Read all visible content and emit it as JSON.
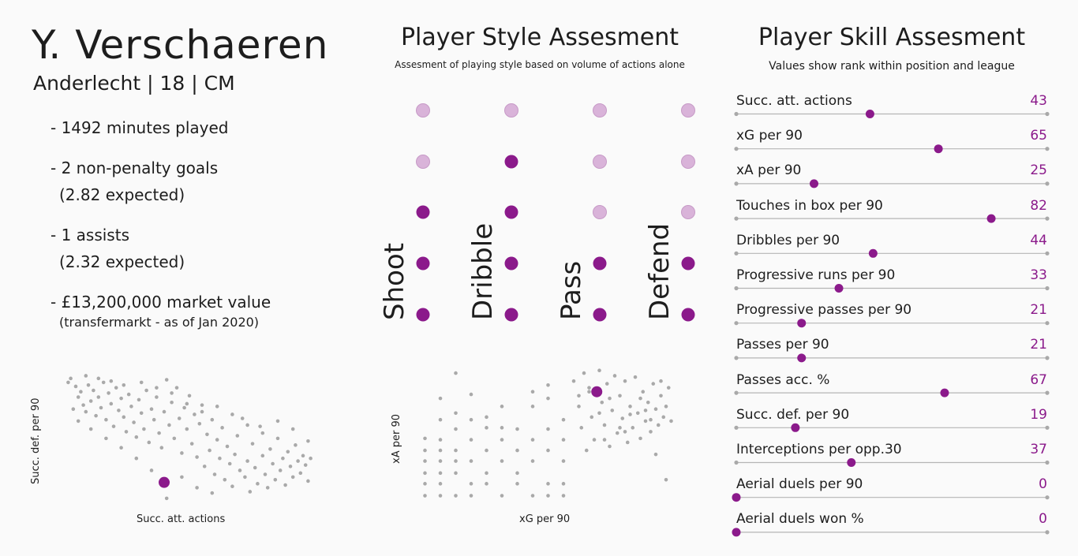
{
  "player": {
    "name": "Y. Verschaeren",
    "subtitle": "Anderlecht | 18 | CM"
  },
  "stats": [
    {
      "text": "- 1492 minutes played"
    },
    {
      "text": "- 2 non-penalty goals",
      "sub": "(2.82 expected)"
    },
    {
      "text": "- 1 assists",
      "sub": "(2.32 expected)"
    },
    {
      "text": "- £13,200,000 market value",
      "sub": "(transfermarkt - as of Jan 2020)"
    }
  ],
  "style": {
    "title": "Player Style Assesment",
    "subtitle": "Assesment of playing style based on volume of actions alone"
  },
  "skill": {
    "title": "Player Skill Assesment",
    "subtitle": "Values show rank within position and league"
  },
  "colors": {
    "accent": "#8b1a8b",
    "accent_light": "#d9b3d9",
    "dots": "#a9a9a9",
    "track": "#b5b5b5"
  },
  "chart_data": [
    {
      "type": "scatter",
      "id": "def-vs-att",
      "xlabel": "Succ. att. actions",
      "ylabel": "Succ. def. per 90",
      "highlight": {
        "x": 0.4,
        "y": 0.15
      },
      "points": [
        [
          0.02,
          0.9
        ],
        [
          0.03,
          0.93
        ],
        [
          0.05,
          0.87
        ],
        [
          0.06,
          0.79
        ],
        [
          0.07,
          0.83
        ],
        [
          0.08,
          0.73
        ],
        [
          0.09,
          0.68
        ],
        [
          0.1,
          0.88
        ],
        [
          0.11,
          0.76
        ],
        [
          0.12,
          0.84
        ],
        [
          0.13,
          0.65
        ],
        [
          0.14,
          0.79
        ],
        [
          0.15,
          0.71
        ],
        [
          0.16,
          0.9
        ],
        [
          0.17,
          0.62
        ],
        [
          0.18,
          0.82
        ],
        [
          0.19,
          0.74
        ],
        [
          0.2,
          0.57
        ],
        [
          0.21,
          0.86
        ],
        [
          0.22,
          0.69
        ],
        [
          0.23,
          0.78
        ],
        [
          0.24,
          0.64
        ],
        [
          0.25,
          0.53
        ],
        [
          0.26,
          0.81
        ],
        [
          0.27,
          0.72
        ],
        [
          0.28,
          0.6
        ],
        [
          0.29,
          0.49
        ],
        [
          0.3,
          0.77
        ],
        [
          0.31,
          0.67
        ],
        [
          0.32,
          0.55
        ],
        [
          0.33,
          0.84
        ],
        [
          0.34,
          0.45
        ],
        [
          0.35,
          0.7
        ],
        [
          0.36,
          0.62
        ],
        [
          0.37,
          0.79
        ],
        [
          0.38,
          0.52
        ],
        [
          0.39,
          0.41
        ],
        [
          0.4,
          0.68
        ],
        [
          0.41,
          0.92
        ],
        [
          0.42,
          0.58
        ],
        [
          0.43,
          0.75
        ],
        [
          0.44,
          0.48
        ],
        [
          0.45,
          0.86
        ],
        [
          0.46,
          0.63
        ],
        [
          0.47,
          0.37
        ],
        [
          0.48,
          0.71
        ],
        [
          0.49,
          0.55
        ],
        [
          0.5,
          0.8
        ],
        [
          0.51,
          0.44
        ],
        [
          0.52,
          0.66
        ],
        [
          0.53,
          0.34
        ],
        [
          0.54,
          0.59
        ],
        [
          0.55,
          0.73
        ],
        [
          0.56,
          0.27
        ],
        [
          0.57,
          0.51
        ],
        [
          0.58,
          0.39
        ],
        [
          0.59,
          0.62
        ],
        [
          0.6,
          0.21
        ],
        [
          0.61,
          0.47
        ],
        [
          0.62,
          0.33
        ],
        [
          0.63,
          0.56
        ],
        [
          0.64,
          0.17
        ],
        [
          0.65,
          0.42
        ],
        [
          0.66,
          0.29
        ],
        [
          0.67,
          0.12
        ],
        [
          0.68,
          0.36
        ],
        [
          0.69,
          0.5
        ],
        [
          0.7,
          0.24
        ],
        [
          0.71,
          0.63
        ],
        [
          0.72,
          0.19
        ],
        [
          0.73,
          0.31
        ],
        [
          0.74,
          0.08
        ],
        [
          0.75,
          0.44
        ],
        [
          0.76,
          0.26
        ],
        [
          0.77,
          0.14
        ],
        [
          0.78,
          0.57
        ],
        [
          0.79,
          0.35
        ],
        [
          0.8,
          0.21
        ],
        [
          0.81,
          0.11
        ],
        [
          0.82,
          0.4
        ],
        [
          0.83,
          0.29
        ],
        [
          0.84,
          0.17
        ],
        [
          0.85,
          0.48
        ],
        [
          0.86,
          0.24
        ],
        [
          0.87,
          0.33
        ],
        [
          0.88,
          0.13
        ],
        [
          0.89,
          0.38
        ],
        [
          0.9,
          0.27
        ],
        [
          0.91,
          0.19
        ],
        [
          0.92,
          0.43
        ],
        [
          0.93,
          0.31
        ],
        [
          0.94,
          0.22
        ],
        [
          0.95,
          0.35
        ],
        [
          0.96,
          0.28
        ],
        [
          0.97,
          0.16
        ],
        [
          0.98,
          0.33
        ],
        [
          0.06,
          0.61
        ],
        [
          0.11,
          0.55
        ],
        [
          0.17,
          0.48
        ],
        [
          0.23,
          0.41
        ],
        [
          0.29,
          0.33
        ],
        [
          0.35,
          0.24
        ],
        [
          0.41,
          0.03
        ],
        [
          0.47,
          0.19
        ],
        [
          0.53,
          0.11
        ],
        [
          0.59,
          0.07
        ],
        [
          0.04,
          0.7
        ],
        [
          0.09,
          0.95
        ],
        [
          0.14,
          0.93
        ],
        [
          0.19,
          0.91
        ],
        [
          0.24,
          0.88
        ],
        [
          0.31,
          0.9
        ],
        [
          0.37,
          0.86
        ],
        [
          0.43,
          0.82
        ],
        [
          0.49,
          0.74
        ],
        [
          0.55,
          0.68
        ],
        [
          0.61,
          0.72
        ],
        [
          0.67,
          0.66
        ],
        [
          0.73,
          0.58
        ],
        [
          0.79,
          0.52
        ],
        [
          0.85,
          0.61
        ],
        [
          0.91,
          0.55
        ],
        [
          0.97,
          0.46
        ]
      ]
    },
    {
      "type": "scatter",
      "id": "xa-vs-xg",
      "xlabel": "xG per 90",
      "ylabel": "xA per 90",
      "highlight": {
        "x": 0.69,
        "y": 0.83
      },
      "points": [
        [
          0.02,
          0.48
        ],
        [
          0.02,
          0.39
        ],
        [
          0.02,
          0.31
        ],
        [
          0.02,
          0.22
        ],
        [
          0.02,
          0.14
        ],
        [
          0.02,
          0.05
        ],
        [
          0.08,
          0.78
        ],
        [
          0.08,
          0.62
        ],
        [
          0.08,
          0.47
        ],
        [
          0.08,
          0.39
        ],
        [
          0.08,
          0.31
        ],
        [
          0.08,
          0.22
        ],
        [
          0.08,
          0.14
        ],
        [
          0.08,
          0.05
        ],
        [
          0.14,
          0.97
        ],
        [
          0.14,
          0.67
        ],
        [
          0.14,
          0.55
        ],
        [
          0.14,
          0.39
        ],
        [
          0.14,
          0.31
        ],
        [
          0.14,
          0.22
        ],
        [
          0.14,
          0.05
        ],
        [
          0.2,
          0.81
        ],
        [
          0.2,
          0.62
        ],
        [
          0.2,
          0.47
        ],
        [
          0.2,
          0.31
        ],
        [
          0.2,
          0.14
        ],
        [
          0.2,
          0.05
        ],
        [
          0.26,
          0.64
        ],
        [
          0.26,
          0.56
        ],
        [
          0.26,
          0.39
        ],
        [
          0.26,
          0.22
        ],
        [
          0.26,
          0.14
        ],
        [
          0.32,
          0.72
        ],
        [
          0.32,
          0.56
        ],
        [
          0.32,
          0.47
        ],
        [
          0.32,
          0.31
        ],
        [
          0.32,
          0.05
        ],
        [
          0.38,
          0.55
        ],
        [
          0.38,
          0.39
        ],
        [
          0.38,
          0.22
        ],
        [
          0.38,
          0.14
        ],
        [
          0.44,
          0.83
        ],
        [
          0.44,
          0.72
        ],
        [
          0.44,
          0.47
        ],
        [
          0.44,
          0.31
        ],
        [
          0.44,
          0.05
        ],
        [
          0.5,
          0.88
        ],
        [
          0.5,
          0.78
        ],
        [
          0.5,
          0.55
        ],
        [
          0.5,
          0.39
        ],
        [
          0.5,
          0.14
        ],
        [
          0.5,
          0.05
        ],
        [
          0.56,
          0.62
        ],
        [
          0.56,
          0.47
        ],
        [
          0.56,
          0.31
        ],
        [
          0.56,
          0.14
        ],
        [
          0.56,
          0.05
        ],
        [
          0.6,
          0.91
        ],
        [
          0.62,
          0.72
        ],
        [
          0.63,
          0.56
        ],
        [
          0.64,
          0.97
        ],
        [
          0.65,
          0.39
        ],
        [
          0.66,
          0.83
        ],
        [
          0.67,
          0.64
        ],
        [
          0.68,
          0.47
        ],
        [
          0.7,
          0.99
        ],
        [
          0.71,
          0.75
        ],
        [
          0.72,
          0.58
        ],
        [
          0.73,
          0.89
        ],
        [
          0.74,
          0.42
        ],
        [
          0.75,
          0.69
        ],
        [
          0.76,
          0.95
        ],
        [
          0.77,
          0.52
        ],
        [
          0.78,
          0.8
        ],
        [
          0.79,
          0.63
        ],
        [
          0.8,
          0.91
        ],
        [
          0.81,
          0.45
        ],
        [
          0.82,
          0.72
        ],
        [
          0.83,
          0.56
        ],
        [
          0.84,
          0.94
        ],
        [
          0.85,
          0.67
        ],
        [
          0.86,
          0.48
        ],
        [
          0.87,
          0.83
        ],
        [
          0.88,
          0.61
        ],
        [
          0.89,
          0.75
        ],
        [
          0.9,
          0.53
        ],
        [
          0.91,
          0.89
        ],
        [
          0.92,
          0.7
        ],
        [
          0.93,
          0.58
        ],
        [
          0.94,
          0.8
        ],
        [
          0.95,
          0.64
        ],
        [
          0.96,
          0.72
        ],
        [
          0.97,
          0.86
        ],
        [
          0.98,
          0.61
        ],
        [
          0.62,
          0.8
        ],
        [
          0.66,
          0.86
        ],
        [
          0.7,
          0.67
        ],
        [
          0.74,
          0.78
        ],
        [
          0.78,
          0.56
        ],
        [
          0.82,
          0.66
        ],
        [
          0.86,
          0.78
        ],
        [
          0.9,
          0.62
        ],
        [
          0.94,
          0.91
        ],
        [
          0.72,
          0.47
        ],
        [
          0.8,
          0.53
        ],
        [
          0.88,
          0.69
        ],
        [
          0.96,
          0.17
        ],
        [
          0.92,
          0.36
        ]
      ]
    },
    {
      "type": "dot_matrix",
      "id": "style",
      "categories": [
        "Shoot",
        "Dribble",
        "Pass",
        "Defend"
      ],
      "levels": 5,
      "values": [
        3,
        4,
        2,
        2
      ]
    },
    {
      "type": "bar",
      "id": "skill",
      "xlim": [
        0,
        100
      ],
      "categories": [
        "Succ. att. actions",
        "xG per 90",
        "xA per 90",
        "Touches in box per 90",
        "Dribbles per 90",
        "Progressive runs per 90",
        "Progressive passes per 90",
        "Passes per 90",
        "Passes acc. %",
        "Succ. def. per 90",
        "Interceptions per opp.30",
        "Aerial duels per 90",
        "Aerial duels won %"
      ],
      "values": [
        43,
        65,
        25,
        82,
        44,
        33,
        21,
        21,
        67,
        19,
        37,
        0,
        0
      ]
    }
  ]
}
